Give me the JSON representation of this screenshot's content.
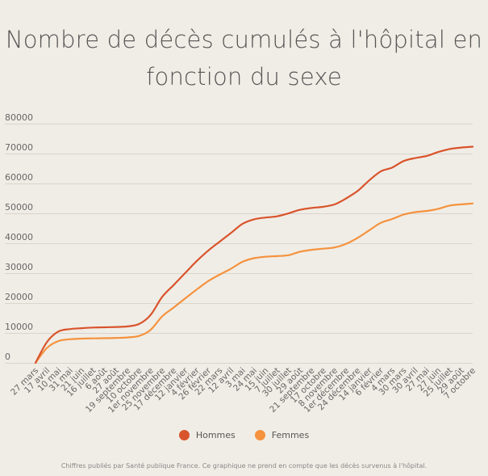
{
  "chart_data": {
    "type": "line",
    "title": "Nombre de décès cumulés à l'hôpital en fonction du sexe",
    "xlabel": "",
    "ylabel": "",
    "ylim": [
      0,
      80000
    ],
    "yticks": [
      0,
      10000,
      20000,
      30000,
      40000,
      50000,
      60000,
      70000,
      80000
    ],
    "grid": true,
    "legend_position": "bottom",
    "categories": [
      "27 mars",
      "17 avril",
      "10 mai",
      "31 mai",
      "21 juin",
      "16 juillet",
      "6 août",
      "27 août",
      "19 septembre",
      "10 octobre",
      "1er novembre",
      "25 novembre",
      "17 décembre",
      "12 janvier",
      "4 février",
      "26 février",
      "22 mars",
      "12 avril",
      "3 mai",
      "24 mai",
      "15 juin",
      "7 juillet",
      "30 juillet",
      "29 août",
      "21 septembre",
      "17 octobre",
      "8 novembre",
      "1er décembre",
      "24 décembre",
      "14 janvier",
      "6 février",
      "4 mars",
      "30 mars",
      "30 avril",
      "27 mai",
      "27 juin",
      "25 juillet",
      "29 août",
      "7 octobre"
    ],
    "series": [
      {
        "name": "Hommes",
        "color": "#d9542c",
        "values": [
          0,
          7000,
          10500,
          11300,
          11600,
          11800,
          11900,
          12000,
          12200,
          13000,
          16000,
          22000,
          26000,
          30000,
          34000,
          37500,
          40500,
          43500,
          46500,
          48000,
          48600,
          49000,
          50000,
          51200,
          51800,
          52200,
          53000,
          55000,
          57500,
          61000,
          64000,
          65300,
          67500,
          68500,
          69200,
          70500,
          71500,
          72000,
          72300
        ]
      },
      {
        "name": "Femmes",
        "color": "#f5923e",
        "values": [
          0,
          5000,
          7300,
          7900,
          8100,
          8200,
          8250,
          8350,
          8500,
          9000,
          11000,
          15500,
          18500,
          21500,
          24500,
          27300,
          29500,
          31500,
          33800,
          35000,
          35500,
          35700,
          36000,
          37200,
          37800,
          38200,
          38600,
          39800,
          41800,
          44300,
          46800,
          48100,
          49600,
          50400,
          50800,
          51500,
          52600,
          53000,
          53300
        ]
      }
    ]
  },
  "footnote": "Chiffres publiés par Santé publique France. Ce graphique ne prend en compte que les décès survenus à l'hôpital."
}
